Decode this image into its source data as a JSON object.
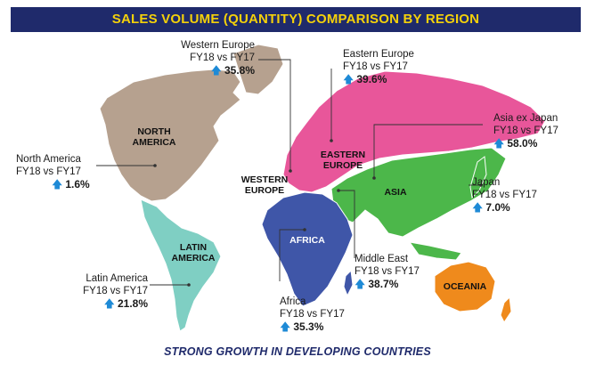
{
  "title": "SALES VOLUME (QUANTITY) COMPARISON BY REGION",
  "footer": "STRONG GROWTH IN DEVELOPING COUNTRIES",
  "arrow_icon": "up-arrow-icon",
  "colors": {
    "north_america": "#b6a18f",
    "latin_america": "#7fcfc3",
    "africa": "#3f56a8",
    "europe": "#e8569a",
    "asia": "#4cb74a",
    "oceania": "#ef8a1c",
    "title_bg": "#1f2a6b",
    "title_text": "#f4d10a",
    "arrow": "#1e8ad6"
  },
  "regions": {
    "north_america": "NORTH AMERICA",
    "latin_america": "LATIN AMERICA",
    "western_europe": "WESTERN EUROPE",
    "eastern_europe": "EASTERN EUROPE",
    "asia": "ASIA",
    "africa": "AFRICA",
    "oceania": "OCEANIA"
  },
  "callouts": {
    "western_europe": {
      "name": "Western Europe",
      "comparison": "FY18 vs FY17",
      "value": "35.8%"
    },
    "eastern_europe": {
      "name": "Eastern Europe",
      "comparison": "FY18 vs FY17",
      "value": "39.6%"
    },
    "asia_ex_japan": {
      "name": "Asia ex Japan",
      "comparison": "FY18 vs FY17",
      "value": "58.0%"
    },
    "north_america": {
      "name": "North America",
      "comparison": "FY18 vs FY17",
      "value": "1.6%"
    },
    "japan": {
      "name": "Japan",
      "comparison": "FY18 vs FY17",
      "value": "7.0%"
    },
    "middle_east": {
      "name": "Middle East",
      "comparison": "FY18 vs FY17",
      "value": "38.7%"
    },
    "latin_america": {
      "name": "Latin America",
      "comparison": "FY18 vs FY17",
      "value": "21.8%"
    },
    "africa": {
      "name": "Africa",
      "comparison": "FY18 vs FY17",
      "value": "35.3%"
    }
  }
}
